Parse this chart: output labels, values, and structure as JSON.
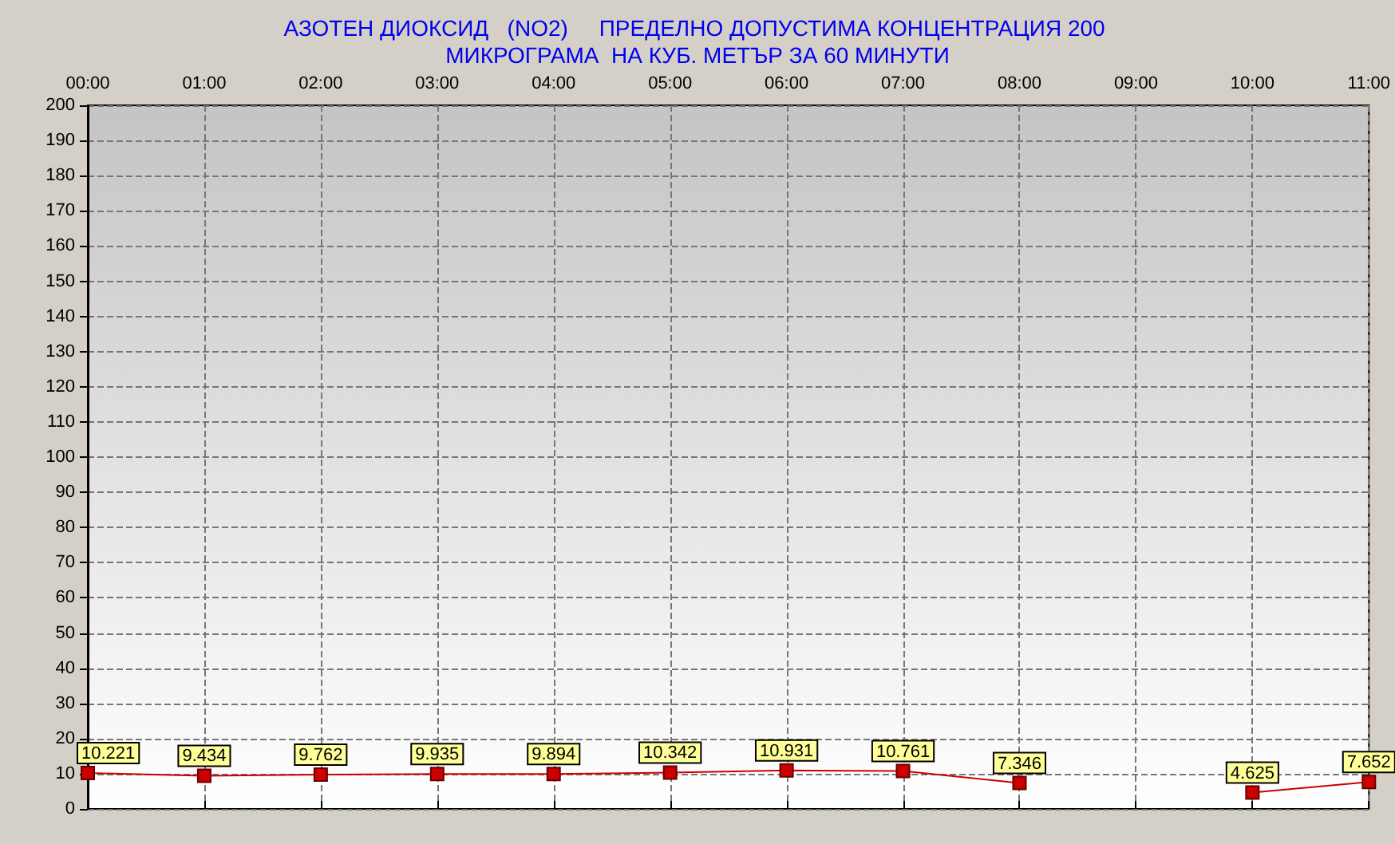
{
  "chart_data": {
    "type": "line",
    "title": "АЗОТЕН ДИОКСИД   (NO2)     ПРЕДЕЛНО ДОПУСТИМА КОНЦЕНТРАЦИЯ 200 МИКРОГРАМА  НА КУБ. МЕТЪР ЗА 60 МИНУТИ",
    "categories": [
      "00:00",
      "01:00",
      "02:00",
      "03:00",
      "04:00",
      "05:00",
      "06:00",
      "07:00",
      "08:00",
      "09:00",
      "10:00",
      "11:00"
    ],
    "series": [
      {
        "color": "#cc0000",
        "values": [
          10.221,
          9.434,
          9.762,
          9.935,
          9.894,
          10.342,
          10.931,
          10.761,
          7.346,
          null,
          4.625,
          7.652
        ]
      }
    ],
    "ylim": [
      0,
      200
    ],
    "yticks": [
      0,
      10,
      20,
      30,
      40,
      50,
      60,
      70,
      80,
      90,
      100,
      110,
      120,
      130,
      140,
      150,
      160,
      170,
      180,
      190,
      200
    ],
    "grid": true,
    "marker": "square",
    "line_style": "solid",
    "data_labels": true
  }
}
